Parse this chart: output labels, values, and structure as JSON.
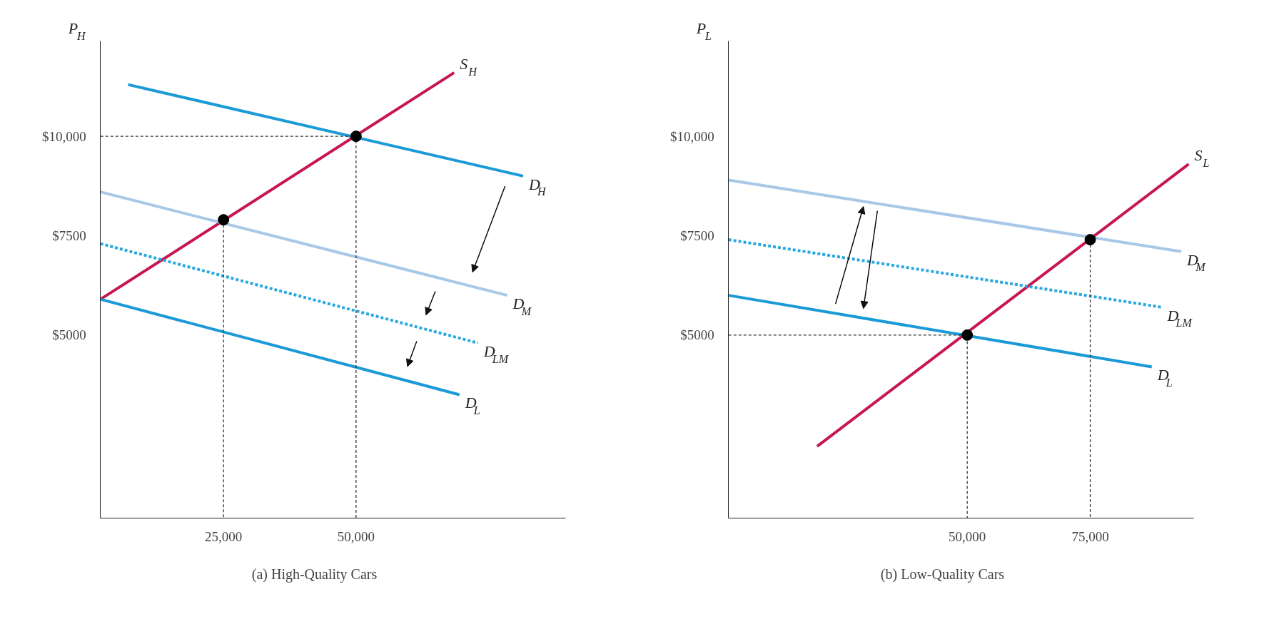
{
  "chart_data": [
    {
      "type": "line",
      "title": "(a) High-Quality Cars",
      "ylabel": "P$_{H}$",
      "xlim": [
        1800,
        89500
      ],
      "ylim": [
        400,
        12400
      ],
      "xticks": [
        {
          "value": 25000,
          "label": "25,000"
        },
        {
          "value": 50000,
          "label": "50,000"
        }
      ],
      "yticks": [
        {
          "value": 5000,
          "label": "$5000"
        },
        {
          "value": 7500,
          "label": "$7500"
        },
        {
          "value": 10000,
          "label": "$10,000"
        }
      ],
      "grid": false,
      "series": [
        {
          "name": "S$_{H}$",
          "color": "#c8174e",
          "x": [
            1800,
            68500
          ],
          "values": [
            5900,
            11600
          ]
        },
        {
          "name": "D$_{H}$",
          "color": "#1a9ad6",
          "x": [
            7000,
            81500
          ],
          "values": [
            11300,
            9000
          ]
        },
        {
          "name": "D$_{M}$",
          "color": "#a8c8e8",
          "x": [
            1800,
            78500
          ],
          "values": [
            8600,
            6000
          ]
        },
        {
          "name": "D$_{LM}$",
          "color": "#29a8e0",
          "line_style": "dashed",
          "x": [
            1800,
            73000
          ],
          "values": [
            7300,
            4800
          ]
        },
        {
          "name": "D$_{L}$",
          "color": "#1a9ad6",
          "x": [
            1800,
            69500
          ],
          "values": [
            5900,
            3500
          ]
        },
        {
          "type": "line",
          "color": "#333333",
          "line_style": "dashed",
          "x": [
            1800,
            50000,
            50000
          ],
          "values": [
            10000,
            10000,
            400
          ]
        },
        {
          "type": "line",
          "color": "#333333",
          "line_style": "dashed",
          "x": [
            25000,
            25000
          ],
          "values": [
            7900,
            400
          ]
        },
        {
          "type": "scatter",
          "marker": "circle",
          "color": "#000000",
          "x": [
            25000,
            50000
          ],
          "values": [
            7900,
            10000
          ]
        }
      ]
    },
    {
      "type": "line",
      "title": "(b) Low-Quality Cars",
      "ylabel": "P$_{L}$",
      "xlim": [
        1500,
        96000
      ],
      "ylim": [
        400,
        12400
      ],
      "xticks": [
        {
          "value": 50000,
          "label": "50,000"
        },
        {
          "value": 75000,
          "label": "75,000"
        }
      ],
      "yticks": [
        {
          "value": 5000,
          "label": "$5000"
        },
        {
          "value": 7500,
          "label": "$7500"
        },
        {
          "value": 10000,
          "label": "$10,000"
        }
      ],
      "grid": false,
      "series": [
        {
          "name": "S$_{L}$",
          "color": "#c8174e",
          "x": [
            19500,
            95000
          ],
          "values": [
            2200,
            9300
          ]
        },
        {
          "name": "D$_{M}$",
          "color": "#a8c8e8",
          "x": [
            1500,
            93500
          ],
          "values": [
            8900,
            7100
          ]
        },
        {
          "name": "D$_{LM}$",
          "color": "#29a8e0",
          "line_style": "dashed",
          "x": [
            1500,
            89500
          ],
          "values": [
            7400,
            5700
          ]
        },
        {
          "name": "D$_{L}$",
          "color": "#1a9ad6",
          "x": [
            1500,
            87500
          ],
          "values": [
            6000,
            4200
          ]
        },
        {
          "type": "line",
          "color": "#333333",
          "line_style": "dashed",
          "x": [
            1500,
            50000,
            50000
          ],
          "values": [
            5000,
            5000,
            400
          ]
        },
        {
          "type": "line",
          "color": "#333333",
          "line_style": "dashed",
          "x": [
            75000,
            75000
          ],
          "values": [
            7400,
            400
          ]
        },
        {
          "type": "scatter",
          "marker": "circle",
          "color": "#000000",
          "x": [
            50000,
            75000
          ],
          "values": [
            5000,
            7400
          ]
        }
      ]
    }
  ]
}
